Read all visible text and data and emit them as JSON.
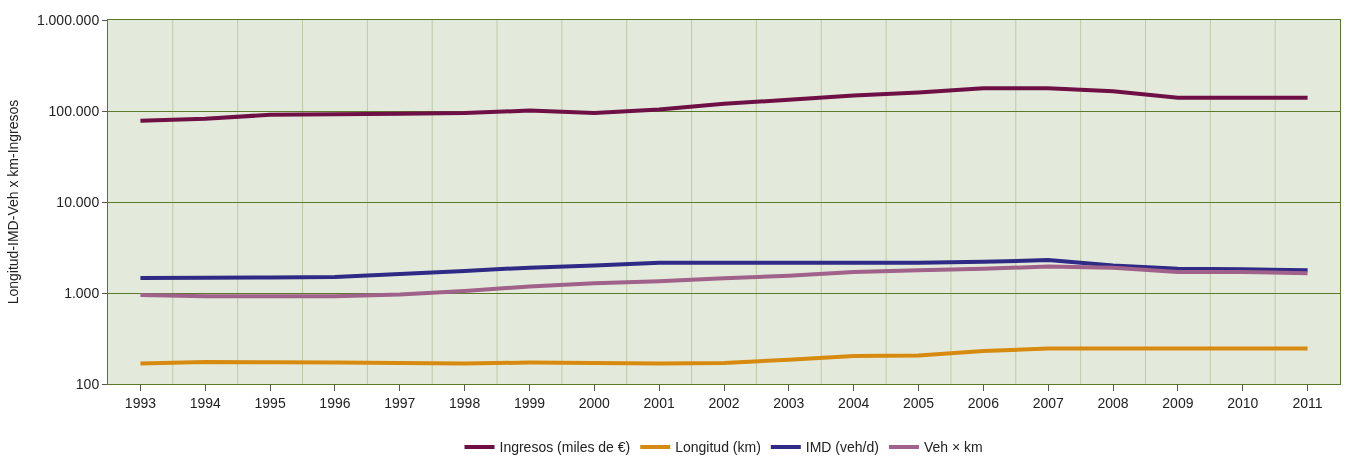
{
  "chart_data": {
    "type": "line",
    "ylabel": "Longitud-IMD-Veh x km-Ingresos",
    "log": "y",
    "grid": true,
    "legend": "bottom",
    "marker": "none",
    "line_style": "solid",
    "categories": [
      "1993",
      "1994",
      "1995",
      "1996",
      "1997",
      "1998",
      "1999",
      "2000",
      "2001",
      "2002",
      "2003",
      "2004",
      "2005",
      "2006",
      "2007",
      "2008",
      "2009",
      "2010",
      "2011"
    ],
    "ylim": [
      100,
      1000000
    ],
    "yticks": [
      {
        "value": 100,
        "label": "100"
      },
      {
        "value": 1000,
        "label": "1.000"
      },
      {
        "value": 10000,
        "label": "10.000"
      },
      {
        "value": 100000,
        "label": "100.000"
      },
      {
        "value": 1000000,
        "label": "1.000.000"
      }
    ],
    "series": [
      {
        "name": "Ingresos (miles de €)",
        "color": "#6e0f45",
        "values": [
          78000,
          82000,
          91000,
          92000,
          93000,
          95000,
          101000,
          95000,
          104000,
          120000,
          133000,
          148000,
          160000,
          178000,
          178000,
          165000,
          140000,
          140000,
          140000
        ]
      },
      {
        "name": "Longitud (km)",
        "color": "#d68a10",
        "values": [
          168,
          175,
          173,
          172,
          170,
          168,
          172,
          170,
          168,
          170,
          185,
          203,
          206,
          230,
          245,
          245,
          245,
          245,
          245
        ]
      },
      {
        "name": "IMD (veh/d)",
        "color": "#2e2a86",
        "values": [
          1460,
          1470,
          1480,
          1500,
          1620,
          1750,
          1900,
          2000,
          2150,
          2150,
          2150,
          2150,
          2150,
          2200,
          2300,
          2000,
          1850,
          1820,
          1780
        ]
      },
      {
        "name": "Veh × km",
        "color": "#a0618a",
        "values": [
          950,
          920,
          920,
          920,
          960,
          1050,
          1180,
          1280,
          1350,
          1450,
          1550,
          1700,
          1780,
          1850,
          1950,
          1900,
          1700,
          1700,
          1650
        ]
      }
    ]
  }
}
